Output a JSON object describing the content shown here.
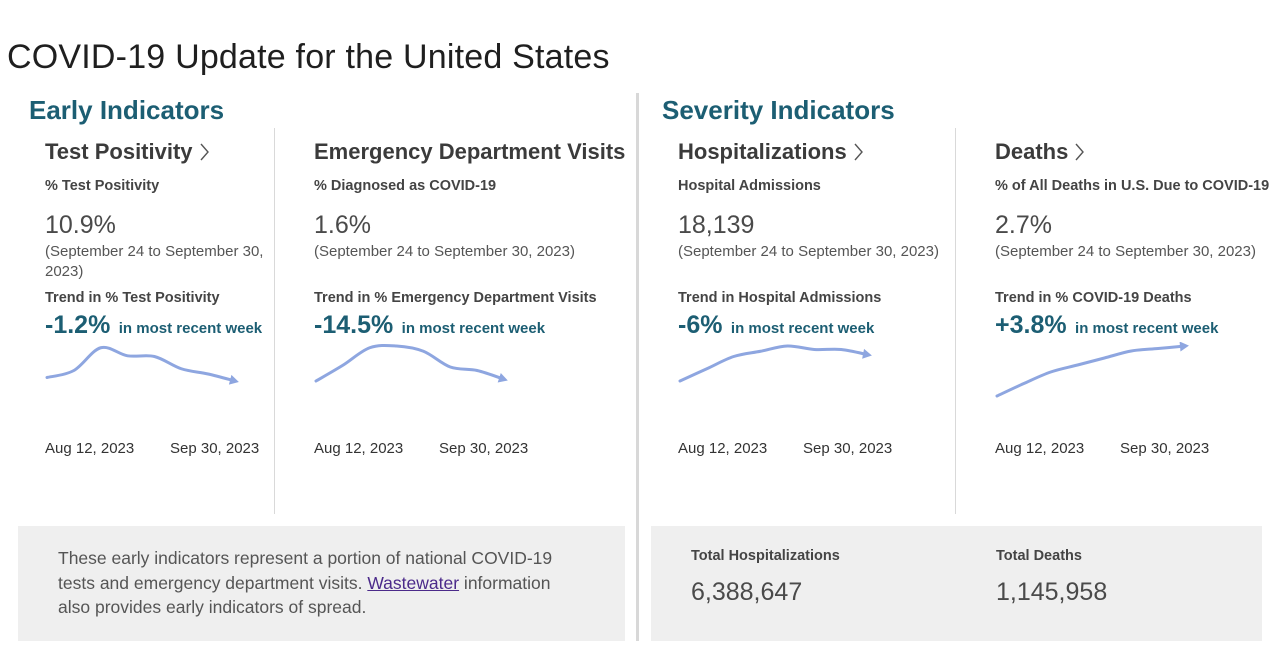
{
  "page": {
    "title": "COVID-19 Update for the United States"
  },
  "sections": {
    "early": {
      "title": "Early Indicators"
    },
    "severity": {
      "title": "Severity Indicators"
    }
  },
  "cards": [
    {
      "title": "Test Positivity",
      "metric_label": "% Test Positivity",
      "value": "10.9%",
      "date_range": "(September 24 to September 30, 2023)",
      "trend_label": "Trend in % Test Positivity",
      "trend_value": "-1.2%",
      "trend_text": "in most recent week",
      "axis_start": "Aug 12, 2023",
      "axis_end": "Sep 30, 2023"
    },
    {
      "title": "Emergency Department Visits",
      "metric_label": "% Diagnosed as COVID-19",
      "value": "1.6%",
      "date_range": "(September 24 to September 30, 2023)",
      "trend_label": "Trend in % Emergency Department Visits",
      "trend_value": "-14.5%",
      "trend_text": "in most recent week",
      "axis_start": "Aug 12, 2023",
      "axis_end": "Sep 30, 2023"
    },
    {
      "title": "Hospitalizations",
      "metric_label": "Hospital Admissions",
      "value": "18,139",
      "date_range": "(September 24 to September 30, 2023)",
      "trend_label": "Trend in Hospital Admissions",
      "trend_value": "-6%",
      "trend_text": "in most recent week",
      "axis_start": "Aug 12, 2023",
      "axis_end": "Sep 30, 2023"
    },
    {
      "title": "Deaths",
      "metric_label": "% of All Deaths in U.S. Due to COVID-19",
      "value": "2.7%",
      "date_range": "(September 24 to September 30, 2023)",
      "trend_label": "Trend in % COVID-19 Deaths",
      "trend_value": "+3.8%",
      "trend_text": "in most recent week",
      "axis_start": "Aug 12, 2023",
      "axis_end": "Sep 30, 2023"
    }
  ],
  "info": {
    "text_before": "These early indicators represent a portion of national COVID-19 tests and emergency department visits. ",
    "link": "Wastewater",
    "text_after": " information also provides early indicators of spread."
  },
  "totals": {
    "hospitalizations_label": "Total Hospitalizations",
    "hospitalizations_value": "6,388,647",
    "deaths_label": "Total Deaths",
    "deaths_value": "1,145,958"
  },
  "colors": {
    "heading": "#1c5e73",
    "sparkline": "#8ea6e0",
    "link": "#4b2a8a"
  },
  "chart_data": [
    {
      "type": "line",
      "series": [
        {
          "values": [
            0.1,
            0.3,
            0.95,
            0.72,
            0.7,
            0.35,
            0.2,
            0.0
          ]
        }
      ]
    },
    {
      "type": "line",
      "series": [
        {
          "values": [
            0.0,
            0.45,
            0.95,
            1.0,
            0.85,
            0.4,
            0.3,
            0.05
          ]
        }
      ]
    },
    {
      "type": "line",
      "series": [
        {
          "values": [
            0.0,
            0.35,
            0.7,
            0.85,
            1.0,
            0.9,
            0.9,
            0.75
          ]
        }
      ]
    },
    {
      "type": "line",
      "series": [
        {
          "values": [
            0.0,
            0.25,
            0.48,
            0.62,
            0.76,
            0.9,
            0.95,
            1.0
          ]
        }
      ]
    }
  ]
}
